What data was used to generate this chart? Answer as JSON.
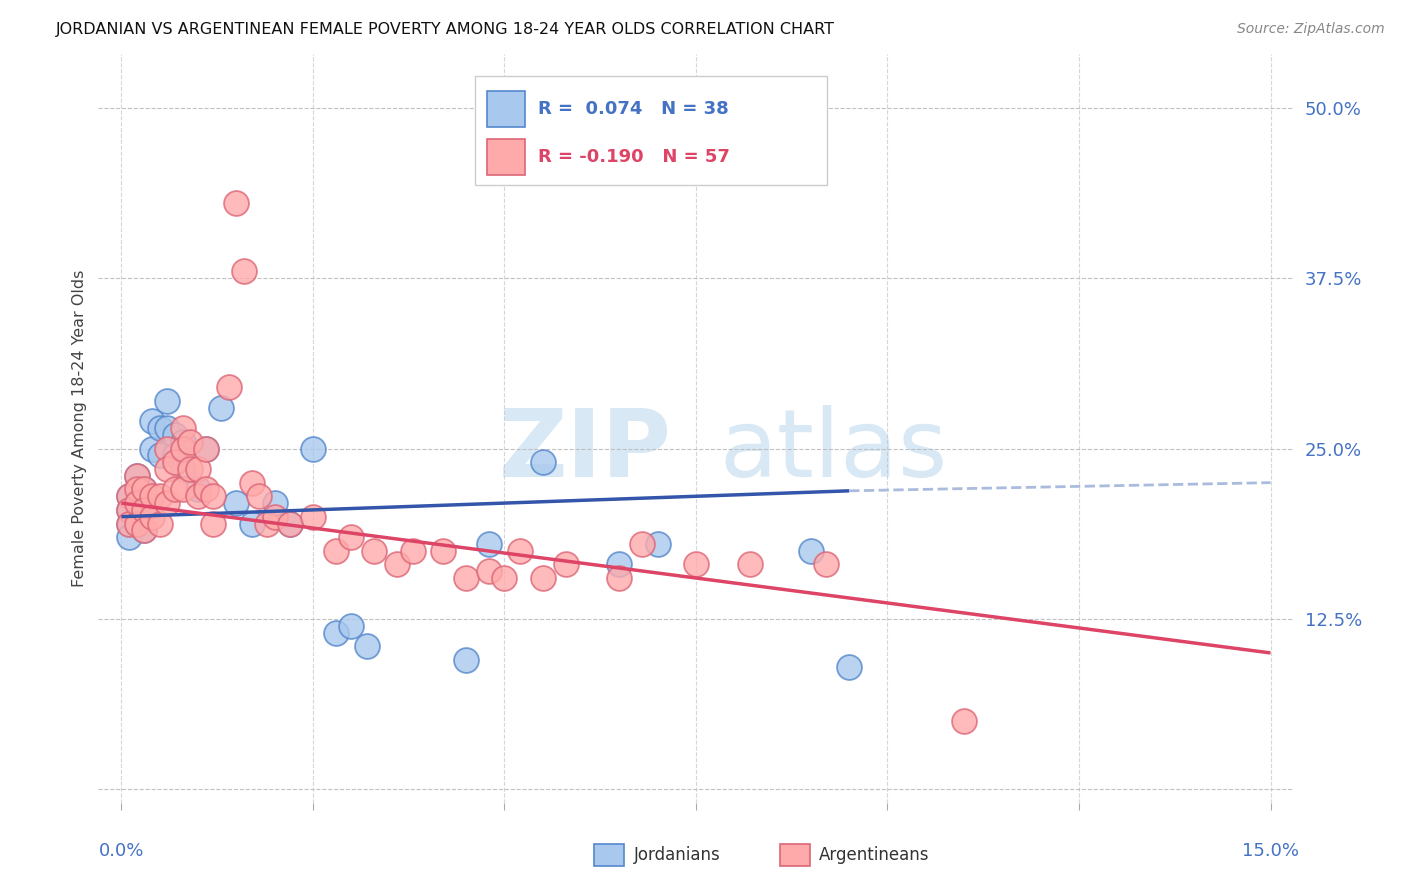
{
  "title": "JORDANIAN VS ARGENTINEAN FEMALE POVERTY AMONG 18-24 YEAR OLDS CORRELATION CHART",
  "source": "Source: ZipAtlas.com",
  "ylabel": "Female Poverty Among 18-24 Year Olds",
  "xlim": [
    0.0,
    0.15
  ],
  "ylim": [
    -0.01,
    0.54
  ],
  "yticks": [
    0.0,
    0.125,
    0.25,
    0.375,
    0.5
  ],
  "ytick_labels": [
    "",
    "12.5%",
    "25.0%",
    "37.5%",
    "50.0%"
  ],
  "blue_face": "#a8c8ee",
  "blue_edge": "#5588cc",
  "pink_face": "#ffaaaa",
  "pink_edge": "#dd6677",
  "trend_blue": "#3355aa",
  "trend_pink": "#dd4466",
  "trend_dash": "#aabbdd",
  "grid_color": "#bbbbbb",
  "background": "#ffffff",
  "title_color": "#111111",
  "tick_color": "#4472c4",
  "label_color": "#444444",
  "source_color": "#888888",
  "legend_text_blue": "R =  0.074   N = 38",
  "legend_text_pink": "R = -0.190   N = 57",
  "jordanians_x": [
    0.001,
    0.001,
    0.001,
    0.001,
    0.002,
    0.002,
    0.002,
    0.003,
    0.003,
    0.003,
    0.004,
    0.004,
    0.005,
    0.005,
    0.006,
    0.006,
    0.007,
    0.007,
    0.008,
    0.008,
    0.01,
    0.011,
    0.013,
    0.015,
    0.017,
    0.02,
    0.022,
    0.025,
    0.028,
    0.03,
    0.032,
    0.045,
    0.048,
    0.055,
    0.065,
    0.07,
    0.09,
    0.095
  ],
  "jordanians_y": [
    0.215,
    0.205,
    0.195,
    0.185,
    0.23,
    0.21,
    0.195,
    0.22,
    0.205,
    0.19,
    0.27,
    0.25,
    0.265,
    0.245,
    0.285,
    0.265,
    0.26,
    0.245,
    0.255,
    0.235,
    0.22,
    0.25,
    0.28,
    0.21,
    0.195,
    0.21,
    0.195,
    0.25,
    0.115,
    0.12,
    0.105,
    0.095,
    0.18,
    0.24,
    0.165,
    0.18,
    0.175,
    0.09
  ],
  "argentineans_x": [
    0.001,
    0.001,
    0.001,
    0.002,
    0.002,
    0.002,
    0.002,
    0.003,
    0.003,
    0.003,
    0.004,
    0.004,
    0.005,
    0.005,
    0.006,
    0.006,
    0.006,
    0.007,
    0.007,
    0.008,
    0.008,
    0.008,
    0.009,
    0.009,
    0.01,
    0.01,
    0.011,
    0.011,
    0.012,
    0.012,
    0.014,
    0.015,
    0.016,
    0.017,
    0.018,
    0.019,
    0.02,
    0.022,
    0.025,
    0.028,
    0.03,
    0.033,
    0.036,
    0.038,
    0.042,
    0.045,
    0.048,
    0.05,
    0.052,
    0.055,
    0.058,
    0.065,
    0.068,
    0.075,
    0.082,
    0.092,
    0.11
  ],
  "argentineans_y": [
    0.215,
    0.205,
    0.195,
    0.23,
    0.22,
    0.21,
    0.195,
    0.22,
    0.205,
    0.19,
    0.215,
    0.2,
    0.215,
    0.195,
    0.25,
    0.235,
    0.21,
    0.24,
    0.22,
    0.265,
    0.25,
    0.22,
    0.255,
    0.235,
    0.235,
    0.215,
    0.25,
    0.22,
    0.215,
    0.195,
    0.295,
    0.43,
    0.38,
    0.225,
    0.215,
    0.195,
    0.2,
    0.195,
    0.2,
    0.175,
    0.185,
    0.175,
    0.165,
    0.175,
    0.175,
    0.155,
    0.16,
    0.155,
    0.175,
    0.155,
    0.165,
    0.155,
    0.18,
    0.165,
    0.165,
    0.165,
    0.05
  ]
}
